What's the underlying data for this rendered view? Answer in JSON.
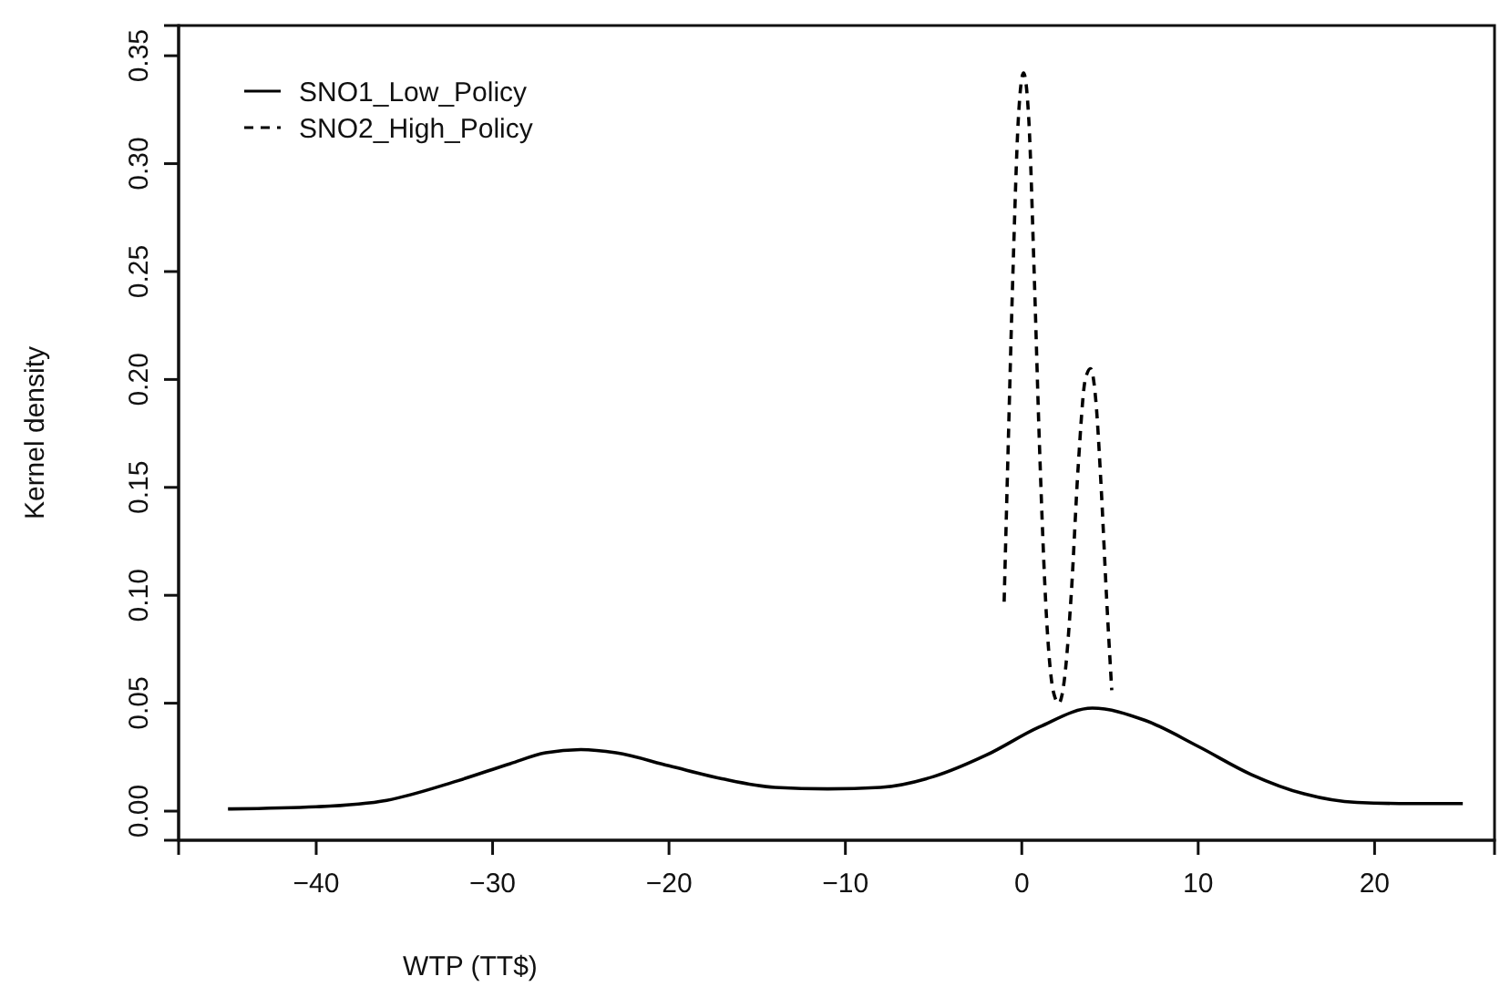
{
  "chart_data": {
    "type": "line",
    "xlabel": "WTP (TT$)",
    "ylabel": "Kernel density",
    "xlim": [
      -47.8,
      26.8
    ],
    "ylim": [
      -0.0135,
      0.364
    ],
    "xticks": [
      {
        "value": -40,
        "label": "−40"
      },
      {
        "value": -30,
        "label": "−30"
      },
      {
        "value": -20,
        "label": "−20"
      },
      {
        "value": -10,
        "label": "−10"
      },
      0,
      10,
      20
    ],
    "yticks": [
      {
        "value": 0,
        "label": "0.00"
      },
      0.05,
      {
        "value": 0.1,
        "label": "0.10"
      },
      0.15,
      {
        "value": 0.2,
        "label": "0.20"
      },
      0.25,
      {
        "value": 0.3,
        "label": "0.30"
      },
      0.35
    ],
    "grid": false,
    "legend": "top left",
    "series": [
      {
        "name": "SNO1_Low_Policy",
        "color": "#000000",
        "line_style": "solid",
        "x": [
          -45,
          -40,
          -36,
          -32,
          -29,
          -27,
          -25,
          -23,
          -20,
          -17,
          -14,
          -11,
          -8,
          -5,
          -2,
          1,
          4,
          7,
          10,
          13,
          16,
          19,
          22,
          25
        ],
        "values": [
          0.001,
          0.002,
          0.005,
          0.014,
          0.022,
          0.027,
          0.0285,
          0.027,
          0.021,
          0.015,
          0.011,
          0.0103,
          0.011,
          0.016,
          0.026,
          0.039,
          0.0477,
          0.042,
          0.03,
          0.017,
          0.008,
          0.004,
          0.0035,
          0.0035
        ]
      },
      {
        "name": "SNO2_High_Policy",
        "color": "#000000",
        "line_style": "dashed",
        "x": [
          -1.0,
          -0.8,
          -0.5,
          -0.2,
          0.1,
          0.4,
          0.7,
          1.0,
          1.4,
          1.8,
          2.1,
          2.4,
          2.8,
          3.2,
          3.6,
          3.9,
          4.2,
          4.5,
          4.8,
          5.1
        ],
        "values": [
          0.097,
          0.16,
          0.25,
          0.32,
          0.342,
          0.32,
          0.25,
          0.17,
          0.09,
          0.055,
          0.05,
          0.06,
          0.1,
          0.16,
          0.2,
          0.205,
          0.19,
          0.15,
          0.1,
          0.056
        ]
      }
    ]
  }
}
